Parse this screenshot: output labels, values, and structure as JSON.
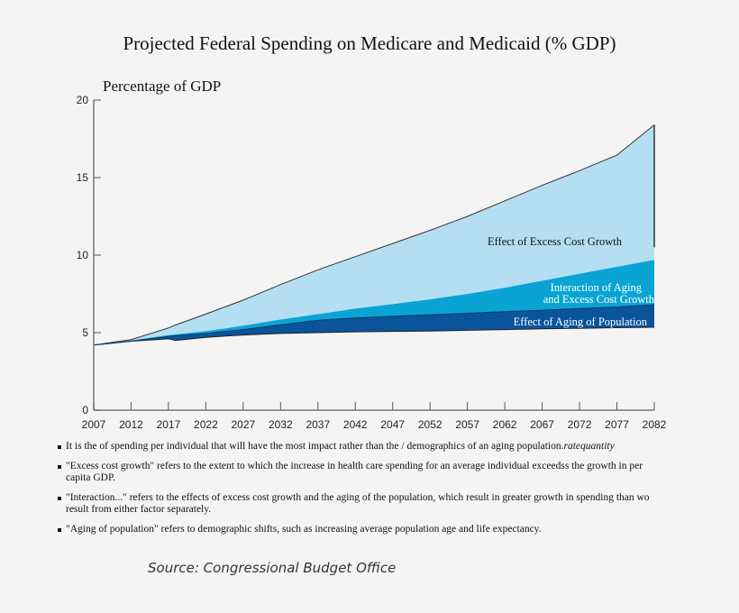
{
  "chart_data": {
    "type": "area",
    "stacked": true,
    "title": "Projected  Federal Spending on Medicare and Medicaid (% GDP)",
    "ylabel": "Percentage of GDP",
    "xlabel": "",
    "xlim": [
      2007,
      2082
    ],
    "ylim": [
      0,
      20
    ],
    "grid": false,
    "x_ticks": [
      "2007",
      "2012",
      "2017",
      "2022",
      "2027",
      "2032",
      "2037",
      "2042",
      "2047",
      "2052",
      "2057",
      "2062",
      "2067",
      "2072",
      "2077",
      "2082"
    ],
    "y_ticks": [
      "0",
      "5",
      "10",
      "15",
      "20"
    ],
    "x": [
      2007,
      2012,
      2017,
      2018,
      2022,
      2027,
      2032,
      2037,
      2042,
      2047,
      2052,
      2057,
      2062,
      2067,
      2072,
      2077,
      2082
    ],
    "baseline": [
      4.2,
      4.45,
      4.6,
      4.5,
      4.7,
      4.85,
      4.95,
      5.0,
      5.05,
      5.08,
      5.1,
      5.15,
      5.2,
      5.25,
      5.28,
      5.32,
      5.35
    ],
    "series": [
      {
        "name": "Effect of Aging of Population",
        "color": "#0a549c",
        "cumulative_top": [
          4.2,
          4.45,
          4.75,
          4.8,
          4.95,
          5.2,
          5.5,
          5.8,
          5.95,
          6.05,
          6.15,
          6.25,
          6.35,
          6.45,
          6.55,
          6.65,
          6.8
        ]
      },
      {
        "name": "Interaction of Aging and Excess Cost Growth",
        "name_lines": [
          "Interaction of Aging",
          "and Excess Cost Growth"
        ],
        "color": "#0aa4d4",
        "cumulative_top": [
          4.2,
          4.5,
          4.85,
          4.9,
          5.1,
          5.45,
          5.85,
          6.2,
          6.55,
          6.85,
          7.15,
          7.5,
          7.9,
          8.35,
          8.8,
          9.25,
          9.7
        ]
      },
      {
        "name": "Effect of Excess Cost Growth",
        "color": "#b4def2",
        "cumulative_top": [
          4.2,
          4.55,
          5.3,
          5.5,
          6.2,
          7.1,
          8.1,
          9.05,
          9.9,
          10.75,
          11.6,
          12.5,
          13.5,
          14.5,
          15.45,
          16.45,
          18.4
        ]
      }
    ]
  },
  "notes": [
    {
      "text": "It is the  of spending per individual that will have the most impact rather than the  / demographics of an aging population.",
      "italic": "ratequantity"
    },
    {
      "text": "\"Excess cost growth\" refers to the extent to which the increase in health care  spending for an average individual exceedss the growth in per",
      "text2": "capita GDP."
    },
    {
      "text": "\"Interaction...\" refers to the effects of excess cost growth and the aging of the population, which result in greater growth in spending than wo",
      "text2": "result from either factor separately."
    },
    {
      "text": "\"Aging of population\" refers to demographic  shifts, such as increasing average population age and life expectancy."
    }
  ],
  "source": "Source: Congressional Budget Office"
}
